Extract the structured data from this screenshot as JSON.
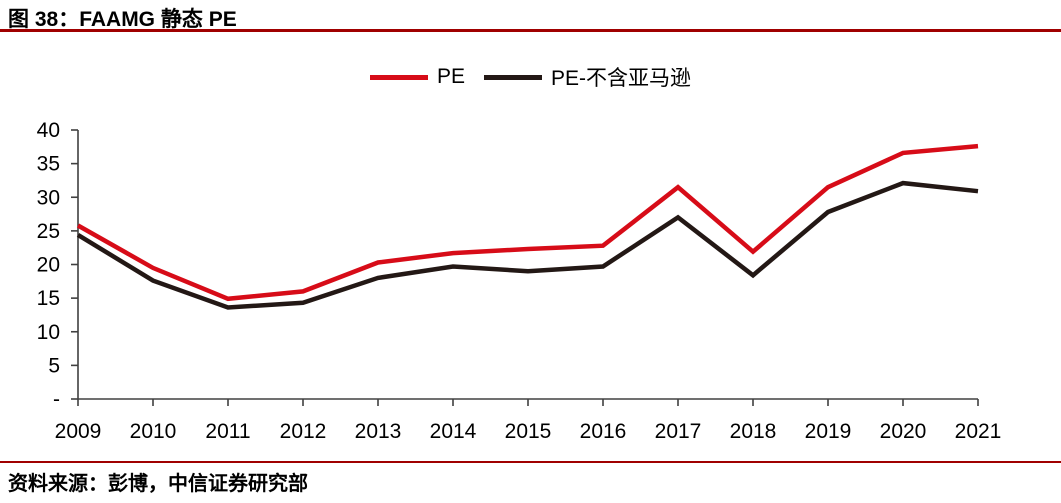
{
  "figure": {
    "title": "图 38：FAAMG 静态 PE"
  },
  "source": {
    "text": "资料来源：彭博，中信证券研究部"
  },
  "colors": {
    "accent_rule": "#A00000",
    "axis": "#404040",
    "pe_line": "#D70C18",
    "pe_ex_line": "#231815"
  },
  "chart_data": {
    "type": "line",
    "title": "FAAMG 静态 PE",
    "categories": [
      "2009",
      "2010",
      "2011",
      "2012",
      "2013",
      "2014",
      "2015",
      "2016",
      "2017",
      "2018",
      "2019",
      "2020",
      "2021"
    ],
    "series": [
      {
        "name": "PE",
        "color": "#D70C18",
        "values": [
          25.8,
          19.5,
          14.9,
          16.0,
          20.3,
          21.7,
          22.3,
          22.8,
          31.5,
          21.9,
          31.5,
          36.6,
          37.6
        ]
      },
      {
        "name": "PE-不含亚马逊",
        "color": "#231815",
        "values": [
          24.4,
          17.6,
          13.6,
          14.3,
          18.0,
          19.7,
          19.0,
          19.7,
          27.0,
          18.4,
          27.8,
          32.1,
          30.9
        ]
      }
    ],
    "xlabel": "",
    "ylabel": "",
    "ylim": [
      0,
      40
    ],
    "ytick_step": 5,
    "ytick_labels": [
      "-",
      "5",
      "10",
      "15",
      "20",
      "25",
      "30",
      "35",
      "40"
    ],
    "grid": false,
    "legend_position": "top"
  }
}
